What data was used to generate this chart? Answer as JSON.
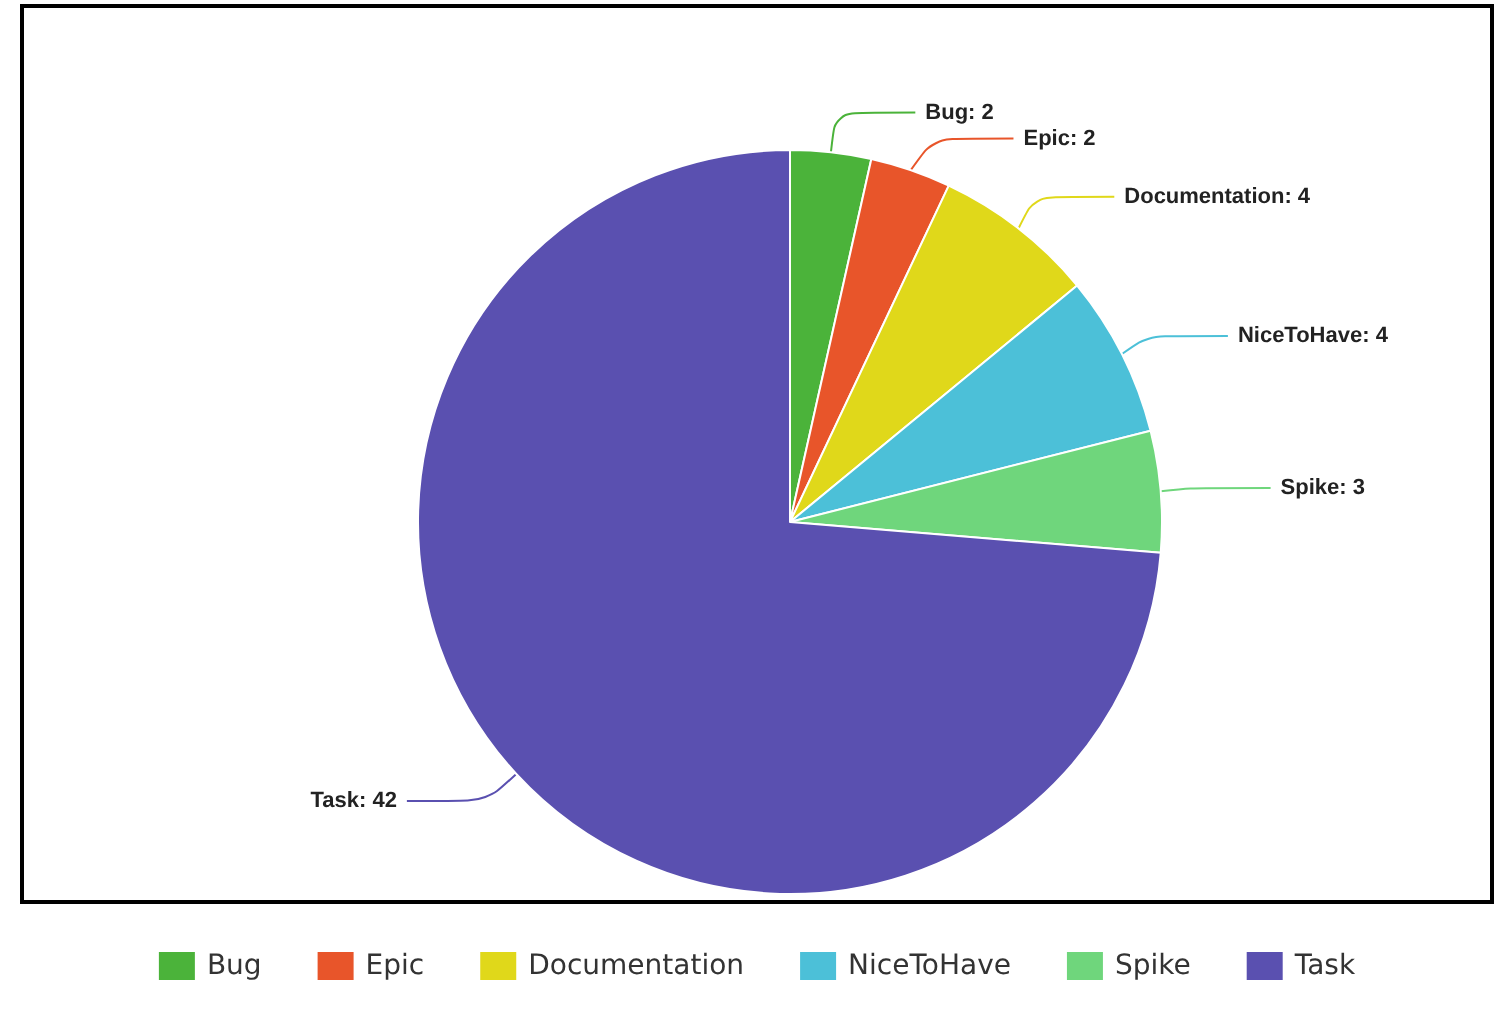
{
  "chart_data": {
    "type": "pie",
    "categories": [
      "Bug",
      "Epic",
      "Documentation",
      "NiceToHave",
      "Spike",
      "Task"
    ],
    "values": [
      2,
      2,
      4,
      4,
      3,
      42
    ],
    "value_labels": [
      "Bug: 2",
      "Epic: 2",
      "Documentation: 4",
      "NiceToHave: 4",
      "Spike: 3",
      "Task: 42"
    ],
    "colors": [
      "#4bb33a",
      "#e8552a",
      "#e0d81a",
      "#4cc0d8",
      "#6fd67c",
      "#5a50b0"
    ],
    "legend": "bottom"
  }
}
